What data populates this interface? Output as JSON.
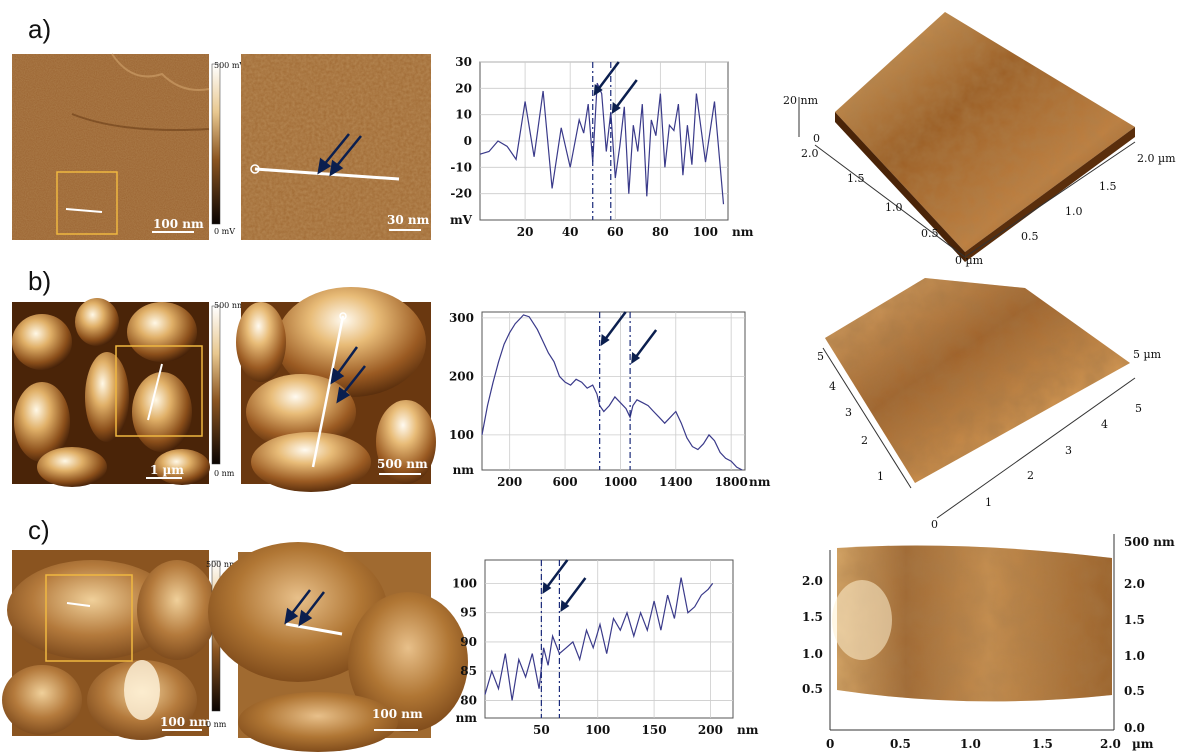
{
  "panel_labels": [
    "a)",
    "b)",
    "c)"
  ],
  "colors": {
    "afm_dark": "#2a1404",
    "afm_mid": "#8a5420",
    "afm_light": "#e8c890",
    "afm_highlight": "#fff6e0",
    "profile_line": "#3a3a8a",
    "arrow": "#0b1f4f",
    "box": "#f0b840",
    "grid": "#cccccc"
  },
  "row_a": {
    "colorbar_top": "500 mV",
    "colorbar_bottom": "0 mV",
    "scalebar_overview": "100 nm",
    "scalebar_zoom": "30 nm",
    "surface_z_label": "20 nm",
    "surface_z_zero": "0",
    "surface_left_ticks": [
      "2.0",
      "1.5",
      "1.0",
      "0.5"
    ],
    "surface_right_ticks": [
      "2.0 µm",
      "1.5",
      "1.0",
      "0.5"
    ],
    "surface_bottom_label": "0 µm"
  },
  "row_b": {
    "colorbar_top": "500 nm",
    "colorbar_bottom": "0 nm",
    "scalebar_overview": "1 µm",
    "scalebar_zoom": "500 nm",
    "surface_left_ticks": [
      "5",
      "4",
      "3",
      "2",
      "1"
    ],
    "surface_right_ticks": [
      "5 µm",
      "5",
      "4",
      "3",
      "2",
      "1"
    ],
    "surface_origin": "0"
  },
  "row_c": {
    "colorbar_top": "500 nm",
    "colorbar_bottom": "0 nm",
    "scalebar_overview": "100 nm",
    "scalebar_zoom": "100 nm",
    "surface_z_label": "500 nm",
    "surface_left_ticks": [
      "2.0",
      "1.5",
      "1.0",
      "0.5"
    ],
    "surface_right_ticks": [
      "2.0",
      "1.5",
      "1.0",
      "0.5",
      "0.0"
    ],
    "surface_x_ticks": [
      "0",
      "0.5",
      "1.0",
      "1.5",
      "2.0"
    ],
    "surface_x_unit": "µm"
  },
  "chart_data": [
    {
      "type": "line",
      "panel": "a",
      "y_unit_label": "mV",
      "x_unit_label": "nm",
      "xlim": [
        0,
        110
      ],
      "ylim": [
        -30,
        30
      ],
      "x_ticks": [
        "20",
        "40",
        "60",
        "80",
        "100"
      ],
      "y_ticks": [
        "30",
        "20",
        "10",
        "0",
        "-10",
        "-20"
      ],
      "x": [
        0,
        4,
        8,
        12,
        16,
        20,
        24,
        28,
        32,
        36,
        40,
        44,
        46,
        48,
        50,
        52,
        54,
        56,
        58,
        60,
        62,
        64,
        66,
        68,
        70,
        72,
        74,
        76,
        78,
        80,
        82,
        84,
        86,
        88,
        90,
        92,
        94,
        96,
        100,
        104,
        108
      ],
      "y": [
        -5,
        -4,
        0,
        -2,
        -7,
        15,
        -6,
        19,
        -18,
        5,
        -10,
        8,
        3,
        14,
        -8,
        22,
        18,
        -4,
        11,
        -14,
        -2,
        13,
        -20,
        6,
        -4,
        14,
        -21,
        8,
        2,
        18,
        -10,
        6,
        4,
        14,
        -13,
        6,
        -9,
        18,
        -8,
        15,
        -24
      ],
      "markers_x": [
        50,
        58
      ]
    },
    {
      "type": "line",
      "panel": "b",
      "y_unit_label": "nm",
      "x_unit_label": "nm",
      "xlim": [
        0,
        1900
      ],
      "ylim": [
        40,
        310
      ],
      "x_ticks": [
        "200",
        "600",
        "1000",
        "1400",
        "1800"
      ],
      "y_ticks": [
        "300",
        "200",
        "100"
      ],
      "x": [
        0,
        40,
        80,
        120,
        160,
        200,
        240,
        280,
        300,
        340,
        360,
        400,
        440,
        480,
        520,
        560,
        600,
        640,
        680,
        720,
        760,
        800,
        830,
        850,
        880,
        920,
        960,
        1000,
        1040,
        1070,
        1090,
        1120,
        1160,
        1200,
        1240,
        1280,
        1320,
        1360,
        1400,
        1440,
        1480,
        1520,
        1560,
        1600,
        1640,
        1680,
        1720,
        1760,
        1800,
        1840,
        1880
      ],
      "y": [
        100,
        150,
        190,
        225,
        255,
        275,
        290,
        300,
        305,
        302,
        295,
        280,
        260,
        240,
        225,
        200,
        190,
        185,
        195,
        190,
        180,
        185,
        170,
        150,
        140,
        150,
        165,
        155,
        145,
        130,
        150,
        160,
        155,
        150,
        140,
        130,
        120,
        130,
        140,
        120,
        95,
        80,
        75,
        85,
        100,
        90,
        70,
        60,
        55,
        45,
        40
      ],
      "markers_x": [
        850,
        1070
      ]
    },
    {
      "type": "line",
      "panel": "c",
      "y_unit_label": "nm",
      "x_unit_label": "nm",
      "xlim": [
        0,
        220
      ],
      "ylim": [
        77,
        104
      ],
      "x_ticks": [
        "50",
        "100",
        "150",
        "200"
      ],
      "y_ticks": [
        "100",
        "95",
        "90",
        "85",
        "80"
      ],
      "x": [
        0,
        6,
        12,
        18,
        24,
        30,
        36,
        42,
        48,
        52,
        56,
        60,
        66,
        72,
        78,
        84,
        90,
        96,
        102,
        108,
        114,
        120,
        126,
        132,
        138,
        144,
        150,
        156,
        162,
        168,
        174,
        180,
        186,
        192,
        198,
        202
      ],
      "y": [
        81,
        85,
        82,
        88,
        80,
        87,
        84,
        88,
        82,
        89,
        86,
        91,
        88,
        89,
        90,
        87,
        92,
        89,
        93,
        88,
        94,
        92,
        95,
        91,
        95,
        92,
        97,
        92,
        98,
        94,
        101,
        95,
        96,
        98,
        99,
        100
      ],
      "markers_x": [
        50,
        66
      ]
    }
  ]
}
